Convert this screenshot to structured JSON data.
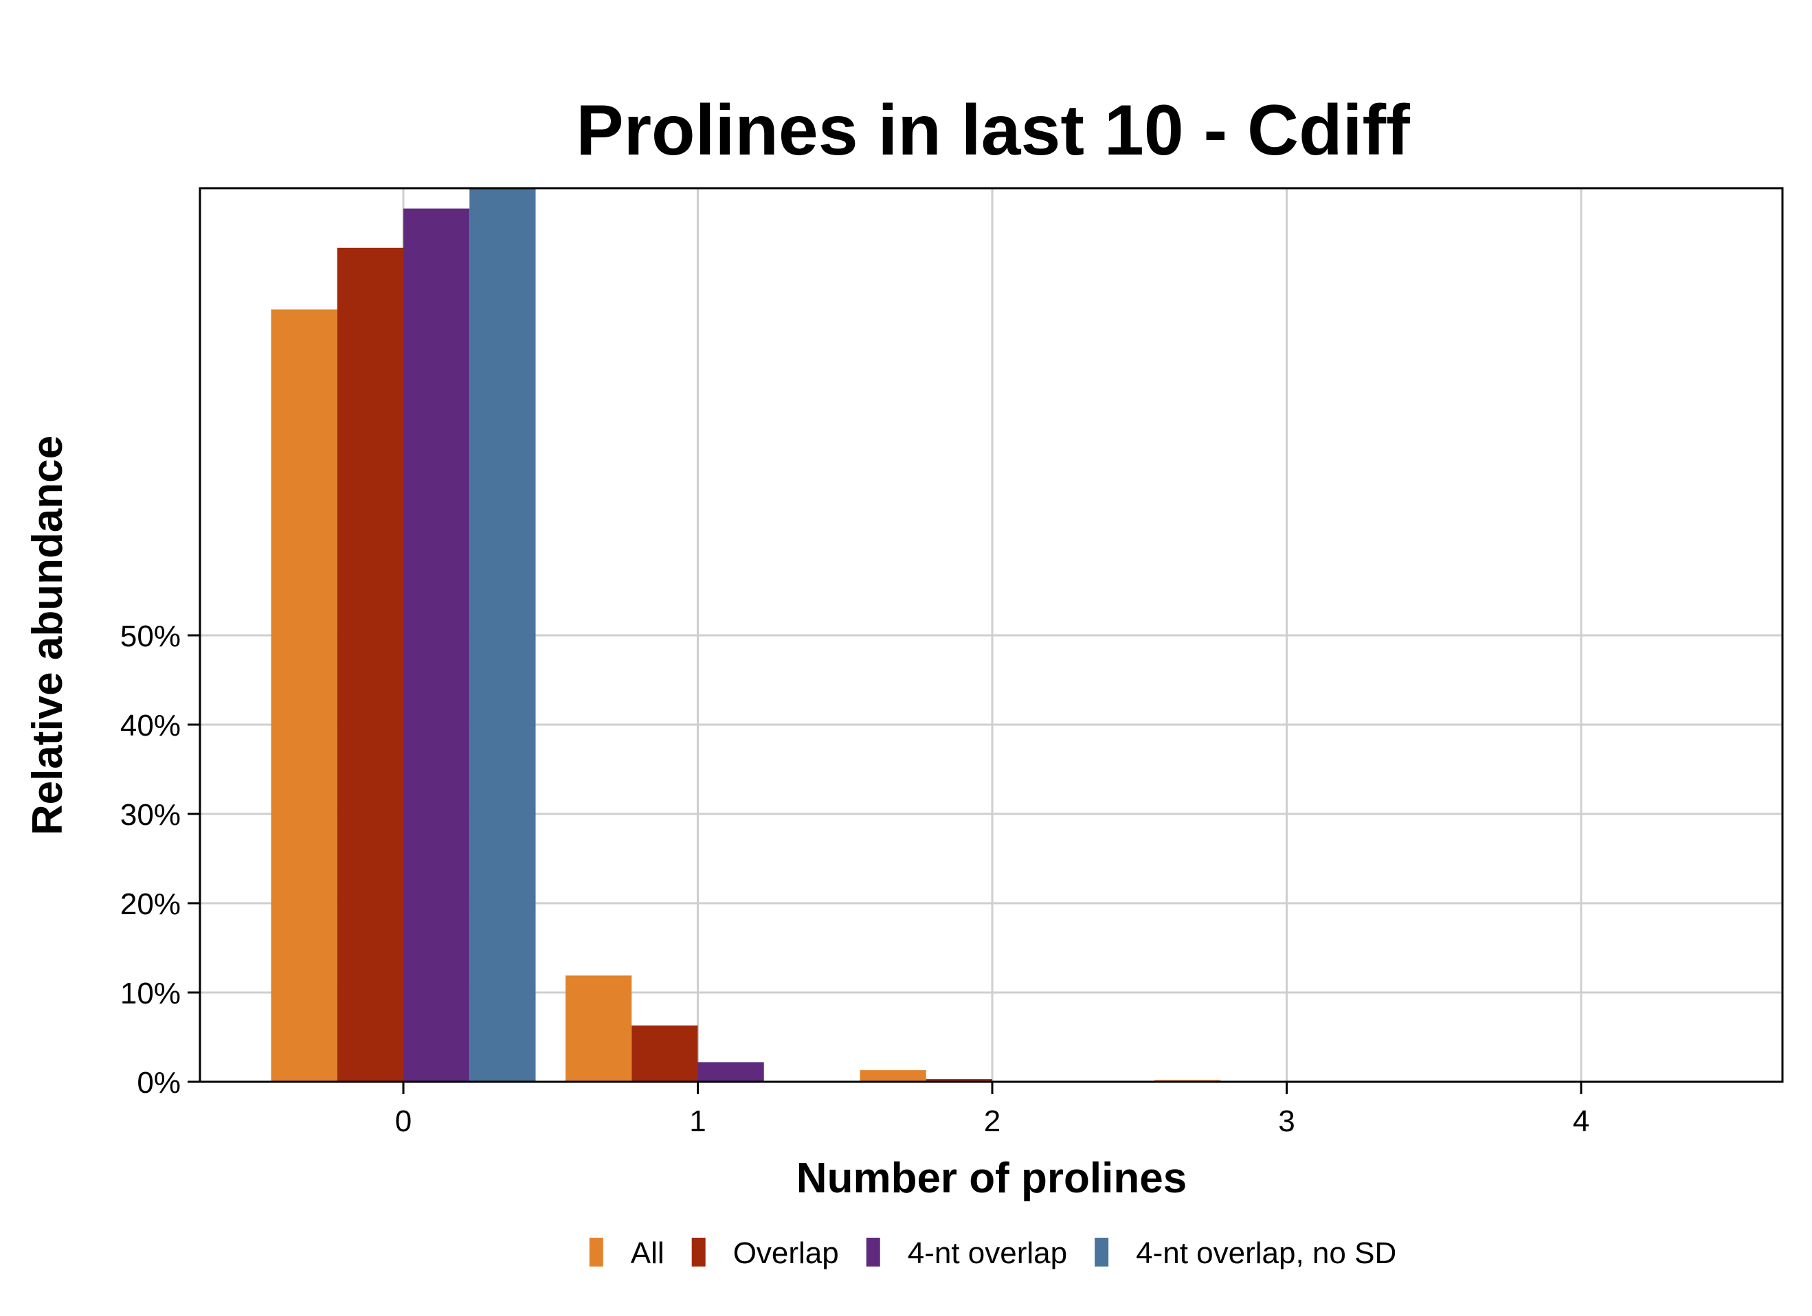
{
  "chart_data": {
    "type": "bar",
    "title": "Prolines in last 10 - Cdiff",
    "xlabel": "Number of prolines",
    "ylabel": "Relative abundance",
    "categories": [
      "0",
      "1",
      "2",
      "3",
      "4"
    ],
    "y_ticks": [
      "0%",
      "10%",
      "20%",
      "30%",
      "40%",
      "50%"
    ],
    "y_tick_values": [
      0,
      10,
      20,
      30,
      40,
      50
    ],
    "ylim": [
      0,
      100
    ],
    "grid": true,
    "legend_position": "bottom",
    "series": [
      {
        "name": "All",
        "color": "#E2822B",
        "values": [
          86.5,
          11.9,
          1.3,
          0.2,
          0.1
        ]
      },
      {
        "name": "Overlap",
        "color": "#A0290C",
        "values": [
          93.4,
          6.3,
          0.3,
          0.0,
          0.0
        ]
      },
      {
        "name": "4-nt overlap",
        "color": "#5F2A7E",
        "values": [
          97.8,
          2.2,
          0.0,
          0.0,
          0.0
        ]
      },
      {
        "name": "4-nt overlap, no SD",
        "color": "#4A749C",
        "values": [
          100.0,
          0.0,
          0.0,
          0.0,
          0.0
        ]
      }
    ]
  }
}
